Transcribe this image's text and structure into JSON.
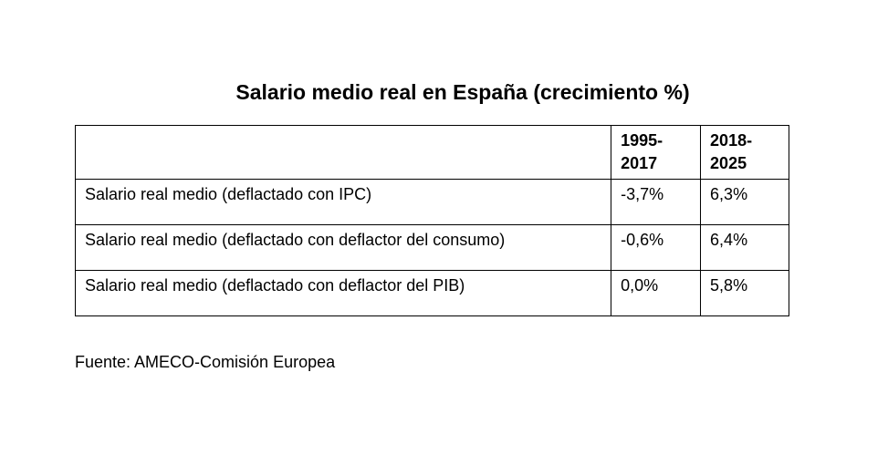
{
  "title": "Salario medio real en España (crecimiento %)",
  "table": {
    "columns": [
      "",
      "1995-\n2017",
      "2018-\n2025"
    ],
    "rows": [
      {
        "label": "Salario real medio (deflactado con IPC)",
        "period_1": "-3,7%",
        "period_2": "6,3%"
      },
      {
        "label": "Salario real medio (deflactado con deflactor del consumo)",
        "period_1": "-0,6%",
        "period_2": "6,4%"
      },
      {
        "label": "Salario real medio (deflactado con deflactor del PIB)",
        "period_1": "0,0%",
        "period_2": "5,8%"
      }
    ]
  },
  "source": "Fuente: AMECO-Comisión Europea"
}
